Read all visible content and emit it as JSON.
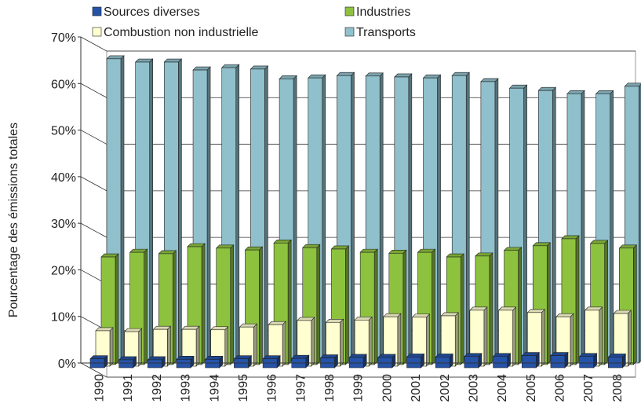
{
  "chart_data": {
    "type": "bar3d",
    "y_label": "Pourcentage des émissions totales",
    "categories": [
      "1990",
      "1991",
      "1992",
      "1993",
      "1994",
      "1995",
      "1996",
      "1997",
      "1998",
      "1999",
      "2000",
      "2001",
      "2002",
      "2003",
      "2004",
      "2005",
      "2006",
      "2007",
      "2008"
    ],
    "series": [
      {
        "name": "Sources diverses",
        "color": "#2553a8",
        "values": [
          1.9,
          1.7,
          1.7,
          1.8,
          1.8,
          1.9,
          1.9,
          2.0,
          2.1,
          2.2,
          2.2,
          2.3,
          2.3,
          2.4,
          2.4,
          2.6,
          2.6,
          2.4,
          2.3
        ]
      },
      {
        "name": "Combustion non industrielle",
        "color": "#ffffd2",
        "values": [
          7.6,
          7.4,
          7.9,
          7.9,
          7.8,
          8.4,
          8.9,
          9.8,
          9.4,
          9.9,
          10.6,
          10.5,
          10.8,
          12.0,
          12.0,
          11.5,
          10.6,
          12.0,
          11.3
        ]
      },
      {
        "name": "Industries",
        "color": "#8dc23f",
        "values": [
          23.1,
          24.1,
          23.8,
          25.3,
          25.0,
          24.6,
          26.1,
          25.1,
          24.8,
          24.1,
          23.9,
          24.1,
          23.1,
          23.3,
          24.5,
          25.5,
          27.0,
          26.0,
          25.0
        ]
      },
      {
        "name": "Transports",
        "color": "#90c0cc",
        "values": [
          65.3,
          64.6,
          64.6,
          62.9,
          63.4,
          63.1,
          61.0,
          61.2,
          61.7,
          61.6,
          61.4,
          61.2,
          61.7,
          60.4,
          59.0,
          58.5,
          57.8,
          57.8,
          59.4
        ]
      }
    ],
    "ylim": [
      0,
      70
    ],
    "yticks": [
      {
        "value": 0,
        "label": "0%"
      },
      {
        "value": 10,
        "label": "10%"
      },
      {
        "value": 20,
        "label": "20%"
      },
      {
        "value": 30,
        "label": "30%"
      },
      {
        "value": 40,
        "label": "40%"
      },
      {
        "value": 50,
        "label": "50%"
      },
      {
        "value": 60,
        "label": "60%"
      },
      {
        "value": 70,
        "label": "70%"
      }
    ],
    "grid": true
  }
}
